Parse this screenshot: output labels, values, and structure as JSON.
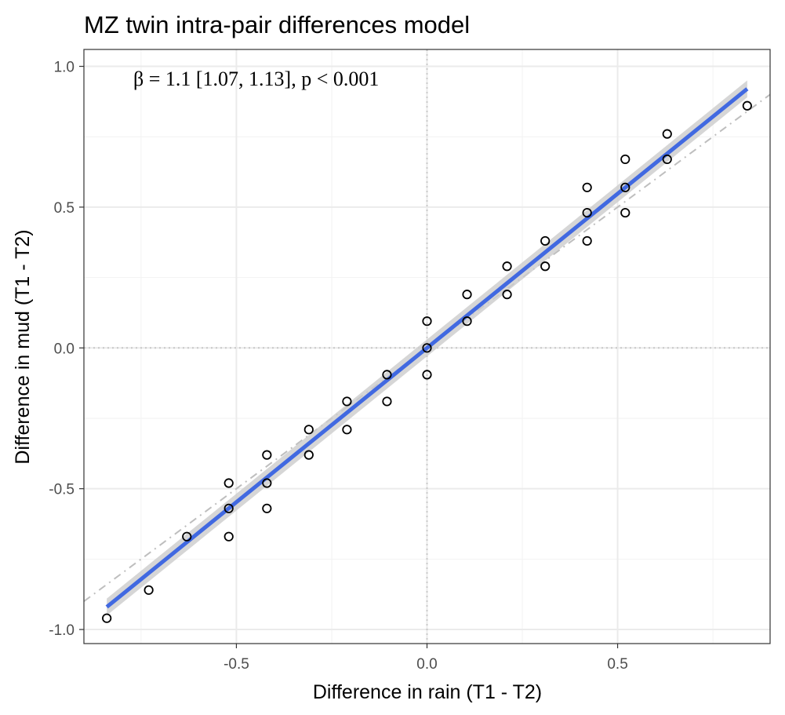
{
  "chart_data": {
    "type": "scatter",
    "title": "MZ twin intra-pair differences model",
    "xlabel": "Difference in rain (T1 - T2)",
    "ylabel": "Difference in mud (T1 - T2)",
    "xlim": [
      -0.9,
      0.9
    ],
    "ylim": [
      -1.05,
      1.06
    ],
    "x_ticks": [
      -0.5,
      0.0,
      0.5
    ],
    "x_tick_labels": [
      "-0.5",
      "0.0",
      "0.5"
    ],
    "y_ticks": [
      -1.0,
      -0.5,
      0.0,
      0.5,
      1.0
    ],
    "y_tick_labels": [
      "-1.0",
      "-0.5",
      "0.0",
      "0.5",
      "1.0"
    ],
    "grid": true,
    "annotation": "β = 1.1 [1.07, 1.13], p < 0.001",
    "points": [
      {
        "x": -0.84,
        "y": -0.96
      },
      {
        "x": -0.73,
        "y": -0.86
      },
      {
        "x": -0.63,
        "y": -0.67
      },
      {
        "x": -0.52,
        "y": -0.48
      },
      {
        "x": -0.52,
        "y": -0.57
      },
      {
        "x": -0.52,
        "y": -0.67
      },
      {
        "x": -0.42,
        "y": -0.38
      },
      {
        "x": -0.42,
        "y": -0.48
      },
      {
        "x": -0.42,
        "y": -0.57
      },
      {
        "x": -0.31,
        "y": -0.29
      },
      {
        "x": -0.31,
        "y": -0.38
      },
      {
        "x": -0.21,
        "y": -0.19
      },
      {
        "x": -0.21,
        "y": -0.29
      },
      {
        "x": -0.105,
        "y": -0.095
      },
      {
        "x": -0.105,
        "y": -0.19
      },
      {
        "x": 0.0,
        "y": 0.095
      },
      {
        "x": 0.0,
        "y": 0.0
      },
      {
        "x": 0.0,
        "y": -0.095
      },
      {
        "x": 0.105,
        "y": 0.19
      },
      {
        "x": 0.105,
        "y": 0.095
      },
      {
        "x": 0.21,
        "y": 0.29
      },
      {
        "x": 0.21,
        "y": 0.19
      },
      {
        "x": 0.31,
        "y": 0.38
      },
      {
        "x": 0.31,
        "y": 0.29
      },
      {
        "x": 0.42,
        "y": 0.57
      },
      {
        "x": 0.42,
        "y": 0.48
      },
      {
        "x": 0.42,
        "y": 0.38
      },
      {
        "x": 0.52,
        "y": 0.67
      },
      {
        "x": 0.52,
        "y": 0.57
      },
      {
        "x": 0.52,
        "y": 0.48
      },
      {
        "x": 0.63,
        "y": 0.76
      },
      {
        "x": 0.63,
        "y": 0.67
      },
      {
        "x": 0.84,
        "y": 0.86
      }
    ],
    "fit_line": {
      "x": [
        -0.84,
        0.84
      ],
      "y": [
        -0.92,
        0.92
      ],
      "color": "#4169e1"
    },
    "confidence_band": {
      "x": [
        -0.84,
        0.84
      ],
      "y_low": [
        -0.95,
        0.89
      ],
      "y_high": [
        -0.89,
        0.95
      ],
      "color": "#cccccc"
    },
    "identity_line": {
      "x": [
        -0.9,
        0.9
      ],
      "y": [
        -0.9,
        0.9
      ],
      "color": "#bebebe"
    },
    "reference_lines": {
      "x": 0.0,
      "y": 0.0,
      "color": "#c8c8c8"
    }
  }
}
